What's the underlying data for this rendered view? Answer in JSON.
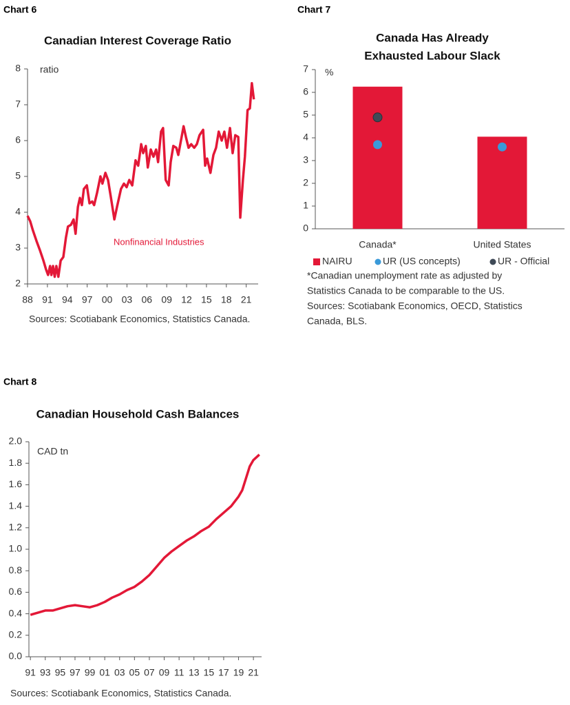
{
  "chart_data": [
    {
      "label": "Chart 6",
      "type": "line",
      "title": "Canadian Interest Coverage Ratio",
      "y_label": "ratio",
      "source": "Sources: Scotiabank Economics, Statistics Canada.",
      "xlim": [
        1988,
        2022.8
      ],
      "xticks": [
        {
          "value": 1988,
          "label": "88"
        },
        {
          "value": 1991,
          "label": "91"
        },
        {
          "value": 1994,
          "label": "94"
        },
        {
          "value": 1997,
          "label": "97"
        },
        {
          "value": 2000,
          "label": "00"
        },
        {
          "value": 2003,
          "label": "03"
        },
        {
          "value": 2006,
          "label": "06"
        },
        {
          "value": 2009,
          "label": "09"
        },
        {
          "value": 2012,
          "label": "12"
        },
        {
          "value": 2015,
          "label": "15"
        },
        {
          "value": 2018,
          "label": "18"
        },
        {
          "value": 2021,
          "label": "21"
        }
      ],
      "ylim": [
        2,
        8
      ],
      "yticks": [
        2,
        3,
        4,
        5,
        6,
        7,
        8
      ],
      "x": [
        1988.0,
        1988.4,
        1988.8,
        1989.35,
        1989.85,
        1990.4,
        1990.8,
        1991.1,
        1991.4,
        1991.6,
        1991.85,
        1992.1,
        1992.35,
        1992.65,
        1993.0,
        1993.4,
        1993.8,
        1994.1,
        1994.55,
        1994.95,
        1995.25,
        1995.6,
        1995.9,
        1996.2,
        1996.5,
        1996.95,
        1997.35,
        1997.75,
        1998.05,
        1998.5,
        1999.0,
        1999.3,
        1999.75,
        2000.15,
        2000.55,
        2001.1,
        2001.5,
        2002.1,
        2002.55,
        2002.95,
        2003.35,
        2003.8,
        2004.3,
        2004.7,
        2005.15,
        2005.45,
        2005.85,
        2006.15,
        2006.6,
        2007.0,
        2007.4,
        2007.7,
        2008.15,
        2008.45,
        2008.85,
        2009.3,
        2009.6,
        2010.0,
        2010.45,
        2010.75,
        2011.15,
        2011.55,
        2011.9,
        2012.3,
        2012.7,
        2013.15,
        2013.55,
        2013.95,
        2014.5,
        2014.8,
        2015.1,
        2015.6,
        2016.05,
        2016.45,
        2016.85,
        2017.3,
        2017.7,
        2018.1,
        2018.55,
        2018.95,
        2019.35,
        2019.8,
        2020.1,
        2020.5,
        2020.8,
        2021.2,
        2021.55,
        2021.85,
        2022.15
      ],
      "series": [
        {
          "name": "Nonfinancial Industries",
          "color": "#e31837",
          "values": [
            3.9,
            3.75,
            3.5,
            3.2,
            2.95,
            2.65,
            2.4,
            2.25,
            2.5,
            2.25,
            2.5,
            2.2,
            2.5,
            2.2,
            2.65,
            2.75,
            3.3,
            3.6,
            3.65,
            3.8,
            3.4,
            4.15,
            4.4,
            4.2,
            4.65,
            4.75,
            4.25,
            4.3,
            4.2,
            4.55,
            5.0,
            4.8,
            5.1,
            4.9,
            4.45,
            3.8,
            4.15,
            4.65,
            4.8,
            4.7,
            4.9,
            4.75,
            5.45,
            5.3,
            5.9,
            5.65,
            5.85,
            5.25,
            5.75,
            5.55,
            5.75,
            5.4,
            6.25,
            6.35,
            4.9,
            4.75,
            5.4,
            5.85,
            5.8,
            5.6,
            6.0,
            6.4,
            6.1,
            5.8,
            5.9,
            5.8,
            5.9,
            6.15,
            6.3,
            5.3,
            5.5,
            5.1,
            5.6,
            5.8,
            6.25,
            6.0,
            6.25,
            5.8,
            6.35,
            5.65,
            6.15,
            6.1,
            3.85,
            4.9,
            5.55,
            6.85,
            6.9,
            7.6,
            7.15
          ]
        }
      ]
    },
    {
      "label": "Chart 7",
      "type": "bar",
      "title": [
        "Canada Has Already",
        "Exhausted Labour Slack"
      ],
      "y_label": "%",
      "note": [
        "*Canadian unemployment rate as adjusted by",
        "Statistics Canada to be comparable to the US."
      ],
      "source": [
        "Sources: Scotiabank Economics, OECD, Statistics",
        "Canada, BLS."
      ],
      "ylim": [
        0,
        7
      ],
      "yticks": [
        0,
        1,
        2,
        3,
        4,
        5,
        6,
        7
      ],
      "categories": [
        "Canada*",
        "United States"
      ],
      "series": [
        {
          "name": "NAIRU",
          "kind": "bar",
          "color": "#e31837",
          "values": [
            6.25,
            4.05
          ]
        },
        {
          "name": "UR (US concepts)",
          "kind": "dot",
          "color": "#3a9ad9",
          "values": [
            3.7,
            3.6
          ]
        },
        {
          "name": "UR - Official",
          "kind": "dot",
          "color": "#3f4a57",
          "values": [
            4.9,
            null
          ]
        }
      ]
    },
    {
      "label": "Chart 8",
      "type": "line",
      "title": "Canadian Household Cash Balances",
      "y_label": "CAD tn",
      "source": "Sources: Scotiabank Economics, Statistics Canada.",
      "xlim": [
        1990.8,
        2022.1
      ],
      "xticks": [
        {
          "value": 1991,
          "label": "91"
        },
        {
          "value": 1993,
          "label": "93"
        },
        {
          "value": 1995,
          "label": "95"
        },
        {
          "value": 1997,
          "label": "97"
        },
        {
          "value": 1999,
          "label": "99"
        },
        {
          "value": 2001,
          "label": "01"
        },
        {
          "value": 2003,
          "label": "03"
        },
        {
          "value": 2005,
          "label": "05"
        },
        {
          "value": 2007,
          "label": "07"
        },
        {
          "value": 2009,
          "label": "09"
        },
        {
          "value": 2011,
          "label": "11"
        },
        {
          "value": 2013,
          "label": "13"
        },
        {
          "value": 2015,
          "label": "15"
        },
        {
          "value": 2017,
          "label": "17"
        },
        {
          "value": 2019,
          "label": "19"
        },
        {
          "value": 2021,
          "label": "21"
        }
      ],
      "ylim": [
        0,
        2
      ],
      "yticks": [
        {
          "value": 0,
          "label": "0.0"
        },
        0.2,
        0.4,
        0.6,
        0.8,
        {
          "value": 1,
          "label": "1.0"
        },
        1.2,
        1.4,
        1.6,
        1.8,
        {
          "value": 2,
          "label": "2.0"
        }
      ],
      "x": [
        1991,
        1992,
        1993,
        1994,
        1995,
        1996,
        1997,
        1998,
        1999,
        2000,
        2001,
        2002,
        2003,
        2004,
        2005,
        2006,
        2007,
        2008,
        2009,
        2010,
        2011,
        2012,
        2013,
        2014,
        2015,
        2016,
        2017,
        2018,
        2019,
        2019.5,
        2020,
        2020.5,
        2021,
        2021.8
      ],
      "series": [
        {
          "color": "#e31837",
          "values": [
            0.39,
            0.41,
            0.43,
            0.43,
            0.45,
            0.47,
            0.48,
            0.47,
            0.46,
            0.48,
            0.51,
            0.55,
            0.58,
            0.62,
            0.65,
            0.7,
            0.76,
            0.84,
            0.92,
            0.98,
            1.03,
            1.08,
            1.12,
            1.17,
            1.21,
            1.28,
            1.34,
            1.4,
            1.49,
            1.55,
            1.66,
            1.77,
            1.83,
            1.88
          ]
        }
      ]
    }
  ]
}
